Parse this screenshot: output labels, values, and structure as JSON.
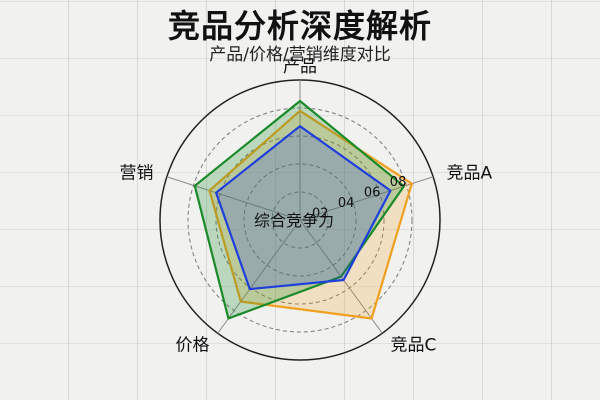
{
  "colors": {
    "series_jingpin_a": "#f0a020",
    "series_jingpin_b": "#1a8a2a",
    "series_jingpin_c": "#1f3fdd",
    "grid": "#222222"
  },
  "chart_data": {
    "type": "radar",
    "title": "竞品分析深度解析",
    "subtitle": "产品/价格/营销维度对比",
    "center_label": "综合竞争力",
    "axes": [
      "竞品A",
      "竞品C",
      "价格",
      "营销",
      "产品"
    ],
    "rlim": [
      0,
      1
    ],
    "rticks": [
      "02",
      "04",
      "06",
      "08"
    ],
    "rtick_values": [
      0.2,
      0.4,
      0.6,
      0.8
    ],
    "grid": true,
    "legend": "none",
    "series": [
      {
        "values": [
          0.84,
          0.87,
          0.72,
          0.68,
          0.78
        ],
        "color": "#f0a020",
        "fill_opacity": 0.22
      },
      {
        "values": [
          0.78,
          0.5,
          0.87,
          0.79,
          0.85
        ],
        "color": "#1a8a2a",
        "fill_opacity": 0.25
      },
      {
        "values": [
          0.68,
          0.53,
          0.61,
          0.63,
          0.67
        ],
        "color": "#1f3fdd",
        "fill_opacity": 0.22
      }
    ]
  }
}
